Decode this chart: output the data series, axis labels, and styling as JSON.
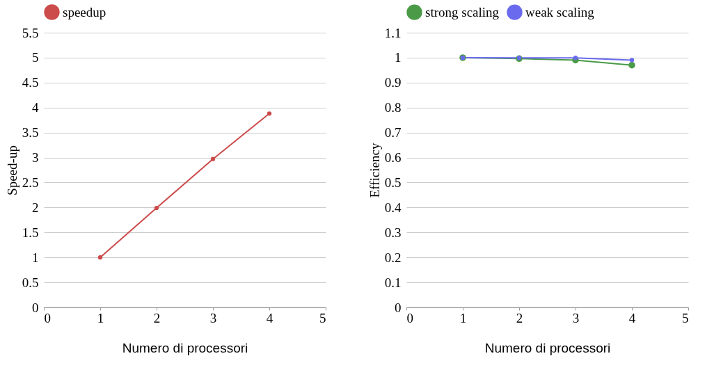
{
  "chart_data": [
    {
      "type": "line",
      "xlabel": "Numero di processori",
      "ylabel": "Speed-up",
      "x": [
        1,
        2,
        3,
        4
      ],
      "series": [
        {
          "name": "speedup",
          "color": "#cc4b4b",
          "values": [
            1,
            1.99,
            2.97,
            3.88
          ]
        }
      ],
      "xlim": [
        0,
        5
      ],
      "xticks": [
        0,
        1,
        2,
        3,
        4,
        5
      ],
      "ylim": [
        0,
        5.5
      ],
      "yticks": [
        0,
        0.5,
        1,
        1.5,
        2,
        2.5,
        3,
        3.5,
        4,
        4.5,
        5,
        5.5
      ],
      "grid": "y",
      "legend": "top",
      "marker": "circle"
    },
    {
      "type": "line",
      "xlabel": "Numero di processori",
      "ylabel": "Efficiency",
      "x": [
        1,
        2,
        3,
        4
      ],
      "series": [
        {
          "name": "strong scaling",
          "color": "#4a9a48",
          "values": [
            1,
            0.996,
            0.99,
            0.97
          ]
        },
        {
          "name": "weak scaling",
          "color": "#6a6aee",
          "values": [
            1,
            0.999,
            0.999,
            0.99
          ]
        }
      ],
      "xlim": [
        0,
        5
      ],
      "xticks": [
        0,
        1,
        2,
        3,
        4,
        5
      ],
      "ylim": [
        0,
        1.1
      ],
      "yticks": [
        0,
        0.1,
        0.2,
        0.3,
        0.4,
        0.5,
        0.6,
        0.7,
        0.8,
        0.9,
        1,
        1.1
      ],
      "grid": "y",
      "legend": "top",
      "marker": "circle"
    }
  ]
}
